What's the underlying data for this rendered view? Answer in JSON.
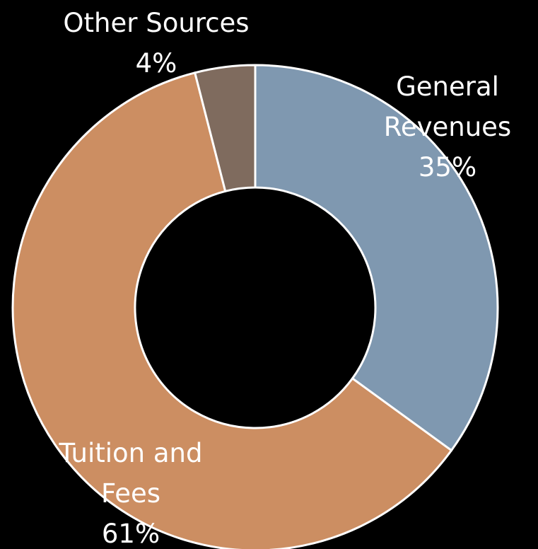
{
  "chart_data": {
    "type": "donut",
    "categories": [
      "General Revenues",
      "Tuition and Fees",
      "Other Sources"
    ],
    "values": [
      35,
      61,
      4
    ],
    "value_labels": [
      "35%",
      "61%",
      "4%"
    ],
    "colors": [
      "#7f98b0",
      "#cc8e62",
      "#7f6b5e"
    ]
  }
}
